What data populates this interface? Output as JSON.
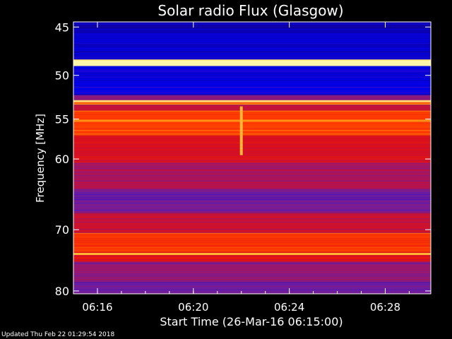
{
  "chart_data": {
    "type": "heatmap",
    "title": "Solar radio Flux (Glasgow)",
    "xlabel": "Start Time (26-Mar-16 06:15:00)",
    "ylabel": "Frequency [MHz]",
    "x_ticks": [
      "06:16",
      "06:20",
      "06:24",
      "06:28"
    ],
    "x_tick_minutes": [
      16,
      20,
      24,
      28
    ],
    "x_range_minutes": [
      15.0,
      29.9
    ],
    "y_ticks": [
      45,
      50,
      55,
      60,
      70,
      80
    ],
    "y_range": [
      44.5,
      80.5
    ],
    "y_scale": "log",
    "colormap": "blue-red-yellow",
    "bands": [
      {
        "from": 44.5,
        "to": 45.5,
        "level": 0.05
      },
      {
        "from": 45.5,
        "to": 48.3,
        "level": 0.08
      },
      {
        "from": 48.3,
        "to": 49.0,
        "level": 1.0
      },
      {
        "from": 49.0,
        "to": 50.3,
        "level": 0.1
      },
      {
        "from": 50.3,
        "to": 52.2,
        "level": 0.12
      },
      {
        "from": 52.2,
        "to": 52.8,
        "level": 0.35
      },
      {
        "from": 52.8,
        "to": 53.3,
        "level": 0.8
      },
      {
        "from": 53.3,
        "to": 54.0,
        "level": 0.5
      },
      {
        "from": 54.0,
        "to": 57.0,
        "level": 0.75
      },
      {
        "from": 57.0,
        "to": 60.5,
        "level": 0.55
      },
      {
        "from": 60.5,
        "to": 64.0,
        "level": 0.42
      },
      {
        "from": 64.0,
        "to": 67.5,
        "level": 0.3
      },
      {
        "from": 67.5,
        "to": 70.5,
        "level": 0.5
      },
      {
        "from": 70.5,
        "to": 73.5,
        "level": 0.72
      },
      {
        "from": 73.5,
        "to": 75.0,
        "level": 0.58
      },
      {
        "from": 75.0,
        "to": 78.5,
        "level": 0.35
      },
      {
        "from": 78.5,
        "to": 80.5,
        "level": 0.28
      }
    ],
    "bright_lines": [
      {
        "freq": 48.6,
        "level": 1.0
      },
      {
        "freq": 52.9,
        "level": 0.95
      },
      {
        "freq": 55.2,
        "level": 0.85
      },
      {
        "freq": 73.8,
        "level": 0.9
      }
    ],
    "burst": {
      "minute": 22.0,
      "freq_from": 53.5,
      "freq_to": 59.5,
      "level": 0.9
    }
  },
  "footer": {
    "updated": "Updated Thu Feb 22 01:29:54 2018"
  }
}
